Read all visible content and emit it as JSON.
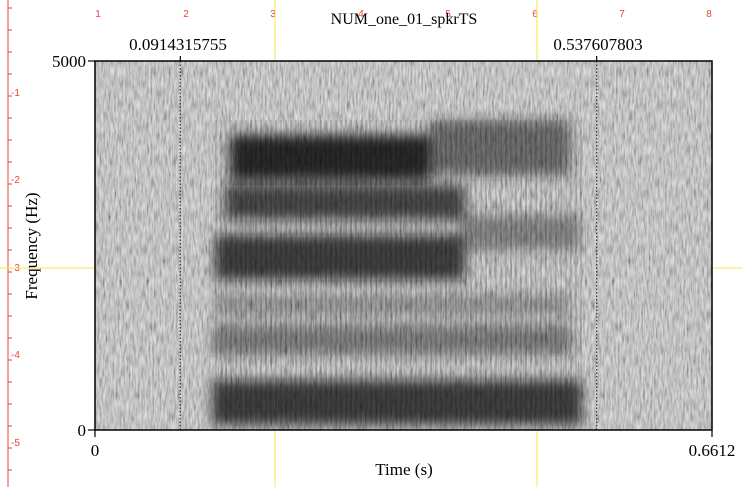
{
  "chart_data": {
    "type": "heatmap",
    "title": "NUM_one_01_spkrTS",
    "xlabel": "Time (s)",
    "ylabel": "Frequency (Hz)",
    "xlim": [
      0,
      0.6612
    ],
    "ylim": [
      0,
      5000
    ],
    "x_tick_labels": [
      "0",
      "0.6612"
    ],
    "y_tick_labels": [
      "0",
      "5000"
    ],
    "cursors": [
      {
        "time": 0.0914315755,
        "label": "0.0914315755"
      },
      {
        "time": 0.537607803,
        "label": "0.537607803"
      }
    ],
    "grid": false,
    "colors": {
      "frame": "#000000",
      "ruler": "#e8453c",
      "guides": "#f2e94a",
      "dark": "#1a1a1a",
      "light": "#f5f5f5"
    }
  },
  "ruler": {
    "top_labels": [
      "1",
      "2",
      "3",
      "4",
      "5",
      "6",
      "7",
      "8"
    ],
    "left_labels": [
      "-1",
      "-2",
      "-3",
      "-4",
      "-5"
    ]
  }
}
